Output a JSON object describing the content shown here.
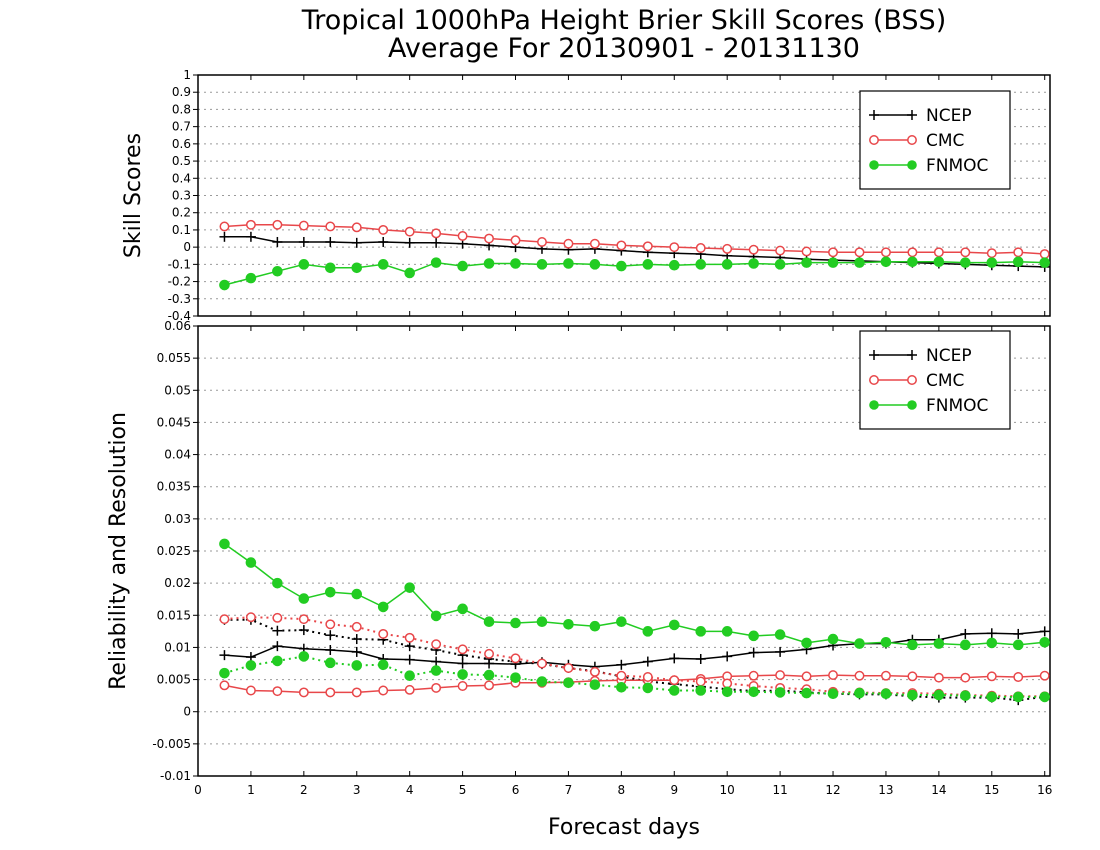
{
  "title": {
    "line1": "Tropical 1000hPa Height Brier Skill Scores (BSS)",
    "line2": "Average For 20130901 - 20131130"
  },
  "xlabel": "Forecast days",
  "colors": {
    "NCEP": "#000000",
    "CMC": "#e8474a",
    "FNMOC": "#22cc22",
    "grid": "#9a9a9a"
  },
  "legend": {
    "position": "top-right",
    "entries": [
      {
        "name": "NCEP",
        "marker": "plus",
        "color": "#000000"
      },
      {
        "name": "CMC",
        "marker": "open-circle",
        "color": "#e8474a"
      },
      {
        "name": "FNMOC",
        "marker": "filled-circle",
        "color": "#22cc22"
      }
    ]
  },
  "chart_data": [
    {
      "type": "line",
      "ylabel": "Skill Scores",
      "xlim": [
        0,
        16.1
      ],
      "ylim": [
        -0.4,
        1
      ],
      "yticks": [
        "1",
        "0.9",
        "0.8",
        "0.7",
        "0.6",
        "0.5",
        "0.4",
        "0.3",
        "0.2",
        "0.1",
        "0",
        "-0.1",
        "-0.2",
        "-0.3",
        "-0.4"
      ],
      "xticks": [
        "0",
        "1",
        "2",
        "3",
        "4",
        "5",
        "6",
        "7",
        "8",
        "9",
        "10",
        "11",
        "12",
        "13",
        "14",
        "15",
        "16"
      ],
      "grid": true,
      "x": [
        0.5,
        1,
        1.5,
        2,
        2.5,
        3,
        3.5,
        4,
        4.5,
        5,
        5.5,
        6,
        6.5,
        7,
        7.5,
        8,
        8.5,
        9,
        9.5,
        10,
        10.5,
        11,
        11.5,
        12,
        12.5,
        13,
        13.5,
        14,
        14.5,
        15,
        15.5,
        16
      ],
      "series": [
        {
          "name": "NCEP",
          "style": "solid",
          "marker": "plus",
          "color": "#000000",
          "values": [
            0.06,
            0.06,
            0.03,
            0.03,
            0.03,
            0.025,
            0.03,
            0.025,
            0.025,
            0.02,
            0.01,
            0.0,
            -0.01,
            -0.015,
            -0.01,
            -0.02,
            -0.03,
            -0.035,
            -0.04,
            -0.05,
            -0.055,
            -0.06,
            -0.07,
            -0.075,
            -0.08,
            -0.085,
            -0.09,
            -0.095,
            -0.1,
            -0.105,
            -0.11,
            -0.115
          ]
        },
        {
          "name": "CMC",
          "style": "solid",
          "marker": "open-circle",
          "color": "#e8474a",
          "values": [
            0.12,
            0.13,
            0.13,
            0.125,
            0.12,
            0.115,
            0.1,
            0.09,
            0.08,
            0.065,
            0.05,
            0.04,
            0.03,
            0.02,
            0.02,
            0.01,
            0.005,
            0.0,
            -0.005,
            -0.01,
            -0.015,
            -0.02,
            -0.025,
            -0.03,
            -0.03,
            -0.03,
            -0.03,
            -0.03,
            -0.03,
            -0.035,
            -0.03,
            -0.04
          ]
        },
        {
          "name": "FNMOC",
          "style": "solid",
          "marker": "filled-circle",
          "color": "#22cc22",
          "values": [
            -0.22,
            -0.18,
            -0.14,
            -0.1,
            -0.12,
            -0.12,
            -0.1,
            -0.15,
            -0.09,
            -0.11,
            -0.095,
            -0.095,
            -0.1,
            -0.095,
            -0.1,
            -0.11,
            -0.1,
            -0.105,
            -0.1,
            -0.1,
            -0.095,
            -0.1,
            -0.09,
            -0.09,
            -0.09,
            -0.085,
            -0.085,
            -0.085,
            -0.09,
            -0.09,
            -0.085,
            -0.09
          ]
        }
      ]
    },
    {
      "type": "line",
      "ylabel": "Reliability and Resolution",
      "xlabel": "Forecast days",
      "xlim": [
        0,
        16.1
      ],
      "ylim": [
        -0.01,
        0.06
      ],
      "yticks": [
        "0.06",
        "0.055",
        "0.05",
        "0.045",
        "0.04",
        "0.035",
        "0.03",
        "0.025",
        "0.02",
        "0.015",
        "0.01",
        "0.005",
        "0",
        "-0.005",
        "-0.01"
      ],
      "xticks": [
        "0",
        "1",
        "2",
        "3",
        "4",
        "5",
        "6",
        "7",
        "8",
        "9",
        "10",
        "11",
        "12",
        "13",
        "14",
        "15",
        "16"
      ],
      "grid": true,
      "x": [
        0.5,
        1,
        1.5,
        2,
        2.5,
        3,
        3.5,
        4,
        4.5,
        5,
        5.5,
        6,
        6.5,
        7,
        7.5,
        8,
        8.5,
        9,
        9.5,
        10,
        10.5,
        11,
        11.5,
        12,
        12.5,
        13,
        13.5,
        14,
        14.5,
        15,
        15.5,
        16
      ],
      "series": [
        {
          "name": "NCEP",
          "style": "solid",
          "marker": "plus",
          "color": "#000000",
          "values": [
            0.0088,
            0.0085,
            0.0102,
            0.0098,
            0.0096,
            0.0093,
            0.0082,
            0.0081,
            0.0078,
            0.0075,
            0.0075,
            0.0074,
            0.0077,
            0.0073,
            0.007,
            0.0073,
            0.0078,
            0.0083,
            0.0082,
            0.0086,
            0.0092,
            0.0093,
            0.0097,
            0.0103,
            0.0106,
            0.0106,
            0.0112,
            0.0112,
            0.0121,
            0.0122,
            0.0121,
            0.0125
          ]
        },
        {
          "name": "NCEP",
          "style": "dotted",
          "marker": "plus",
          "color": "#000000",
          "values": [
            0.0143,
            0.0143,
            0.0126,
            0.0127,
            0.0119,
            0.0113,
            0.0112,
            0.0102,
            0.0096,
            0.0088,
            0.0082,
            0.0078,
            0.0074,
            0.0068,
            0.0063,
            0.0055,
            0.0047,
            0.0043,
            0.0039,
            0.0035,
            0.0032,
            0.0033,
            0.003,
            0.0028,
            0.0027,
            0.0027,
            0.0024,
            0.0022,
            0.0022,
            0.0022,
            0.0018,
            0.0023
          ]
        },
        {
          "name": "CMC",
          "style": "solid",
          "marker": "open-circle",
          "color": "#e8474a",
          "values": [
            0.0041,
            0.0033,
            0.0032,
            0.003,
            0.003,
            0.003,
            0.0033,
            0.0034,
            0.0037,
            0.004,
            0.0041,
            0.0045,
            0.0045,
            0.0046,
            0.0048,
            0.0049,
            0.0049,
            0.0049,
            0.0051,
            0.0055,
            0.0056,
            0.0057,
            0.0055,
            0.0057,
            0.0056,
            0.0056,
            0.0055,
            0.0053,
            0.0053,
            0.0055,
            0.0054,
            0.0056
          ]
        },
        {
          "name": "CMC",
          "style": "dotted",
          "marker": "open-circle",
          "color": "#e8474a",
          "values": [
            0.0144,
            0.0147,
            0.0146,
            0.0144,
            0.0136,
            0.0132,
            0.0121,
            0.0115,
            0.0105,
            0.0097,
            0.009,
            0.0083,
            0.0075,
            0.0068,
            0.0062,
            0.0056,
            0.0054,
            0.0049,
            0.0047,
            0.0044,
            0.004,
            0.0037,
            0.0035,
            0.0031,
            0.003,
            0.0029,
            0.0029,
            0.0028,
            0.0026,
            0.0025,
            0.0024,
            0.0024
          ]
        },
        {
          "name": "FNMOC",
          "style": "solid",
          "marker": "filled-circle",
          "color": "#22cc22",
          "values": [
            0.0261,
            0.0232,
            0.02,
            0.0176,
            0.0186,
            0.0183,
            0.0163,
            0.0193,
            0.0149,
            0.016,
            0.014,
            0.0138,
            0.014,
            0.0136,
            0.0133,
            0.014,
            0.0125,
            0.0135,
            0.0125,
            0.0125,
            0.0118,
            0.012,
            0.0107,
            0.0113,
            0.0106,
            0.0108,
            0.0104,
            0.0106,
            0.0104,
            0.0107,
            0.0104,
            0.0108
          ]
        },
        {
          "name": "FNMOC",
          "style": "dotted",
          "marker": "filled-circle",
          "color": "#22cc22",
          "values": [
            0.006,
            0.0072,
            0.0079,
            0.0086,
            0.0076,
            0.0072,
            0.0073,
            0.0056,
            0.0064,
            0.0058,
            0.0057,
            0.0053,
            0.0047,
            0.0045,
            0.0042,
            0.0038,
            0.0037,
            0.0033,
            0.0033,
            0.0031,
            0.0031,
            0.003,
            0.0029,
            0.0028,
            0.0029,
            0.0028,
            0.0026,
            0.0026,
            0.0025,
            0.0023,
            0.0023,
            0.0023
          ]
        }
      ]
    }
  ]
}
